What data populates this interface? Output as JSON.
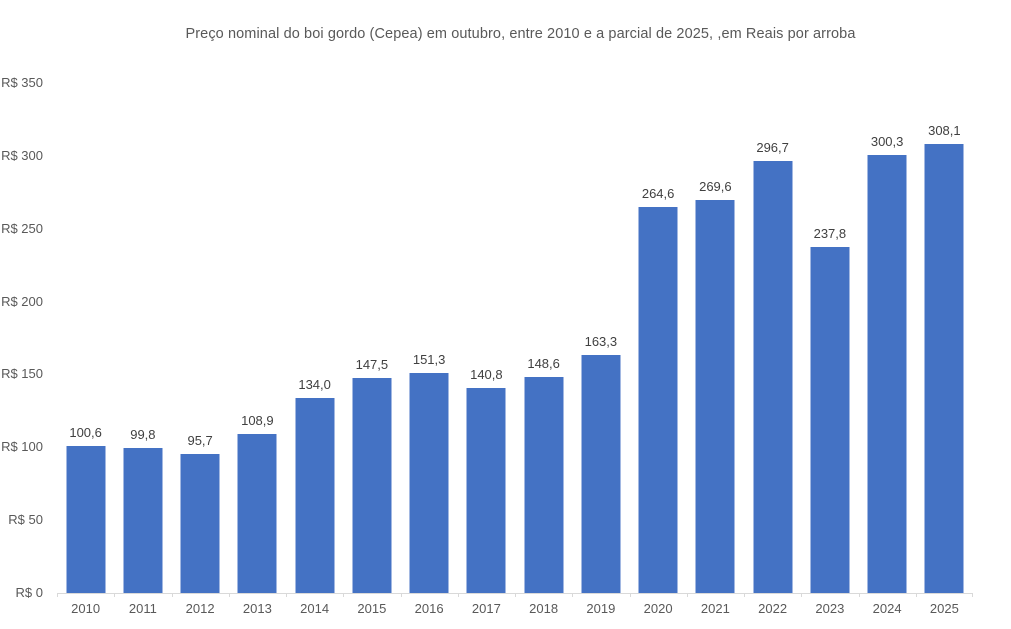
{
  "chart_data": {
    "type": "bar",
    "title": "Preço nominal do boi gordo (Cepea) em outubro, entre 2010 e a parcial de 2025, ,em Reais por arroba",
    "xlabel": "",
    "ylabel": "",
    "categories": [
      "2010",
      "2011",
      "2012",
      "2013",
      "2014",
      "2015",
      "2016",
      "2017",
      "2018",
      "2019",
      "2020",
      "2021",
      "2022",
      "2023",
      "2024",
      "2025"
    ],
    "values": [
      100.6,
      99.8,
      95.7,
      108.9,
      134.0,
      147.5,
      151.3,
      140.8,
      148.6,
      163.3,
      264.6,
      269.6,
      296.7,
      237.8,
      300.3,
      308.1
    ],
    "value_labels": [
      "100,6",
      "99,8",
      "95,7",
      "108,9",
      "134,0",
      "147,5",
      "151,3",
      "140,8",
      "148,6",
      "163,3",
      "264,6",
      "269,6",
      "296,7",
      "237,8",
      "300,3",
      "308,1"
    ],
    "ylim": [
      0,
      350
    ],
    "y_ticks": [
      {
        "value": 350,
        "label": "R$ 350"
      },
      {
        "value": 300,
        "label": "R$ 300"
      },
      {
        "value": 250,
        "label": "R$ 250"
      },
      {
        "value": 200,
        "label": "R$ 200"
      },
      {
        "value": 150,
        "label": "R$ 150"
      },
      {
        "value": 100,
        "label": "R$ 100"
      },
      {
        "value": 50,
        "label": "R$ 50"
      },
      {
        "value": 0,
        "label": "R$ 0"
      }
    ],
    "grid": false,
    "legend": "none",
    "colors": {
      "bar": "#4472c4",
      "value_label_text": "#404040",
      "axis_text": "#595959",
      "axis_line": "#d9d9d9",
      "title_text": "#595959",
      "background": "#ffffff"
    }
  }
}
